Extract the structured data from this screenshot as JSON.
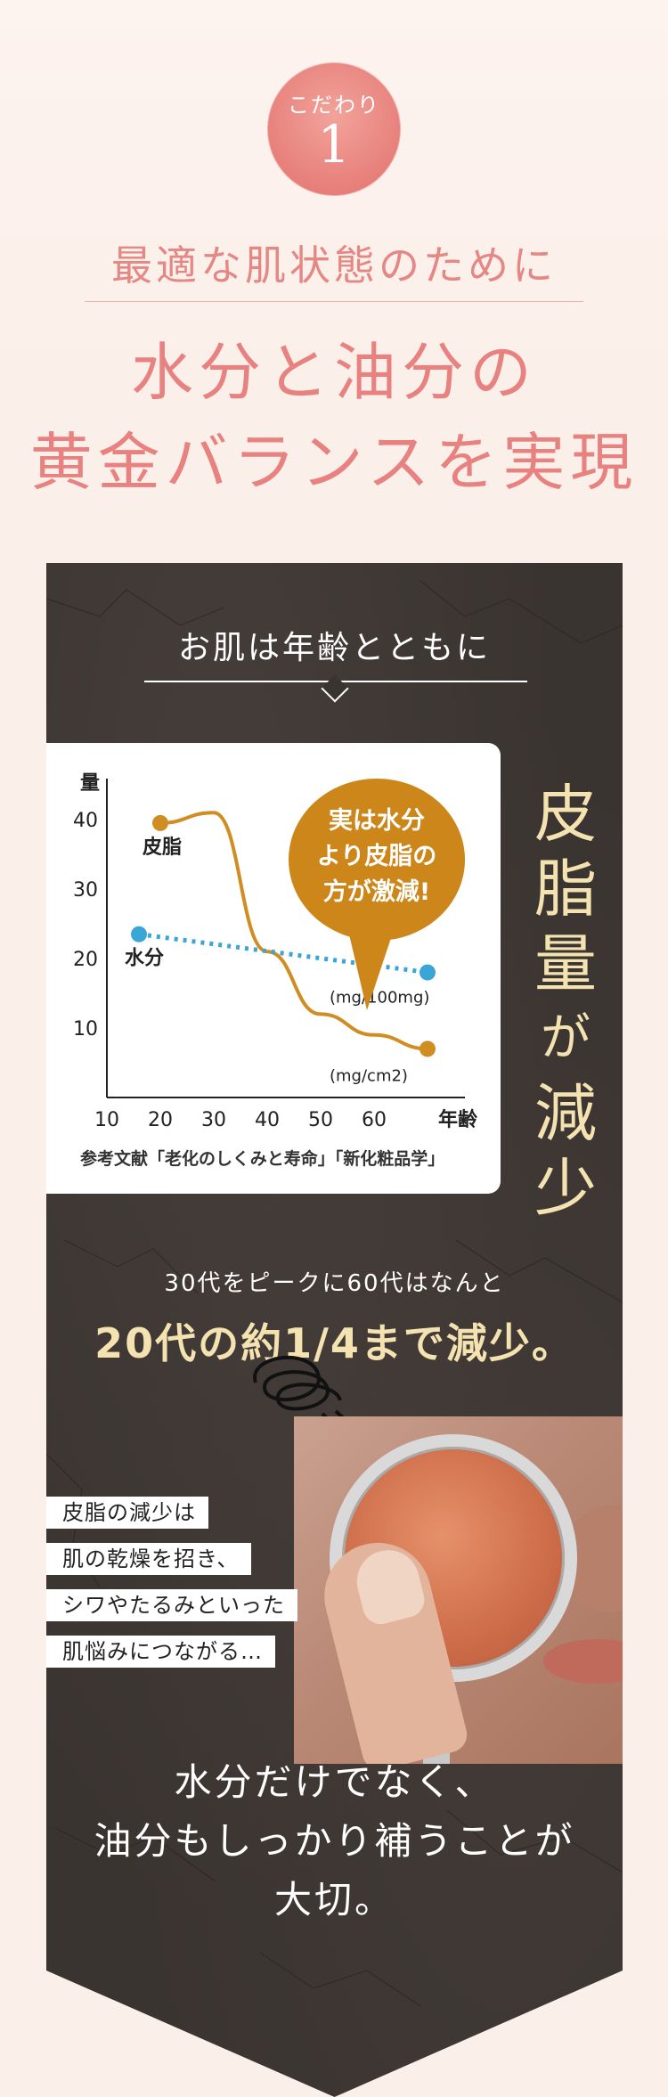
{
  "badge": {
    "label": "こだわり",
    "number": "1"
  },
  "subtitle": "最適な肌状態のために",
  "headline": {
    "line1": "水分と油分の",
    "line2": "黄金バランスを実現"
  },
  "panel": {
    "title": "お肌は年齢とともに",
    "vertical_title": [
      "皮",
      "脂",
      "量",
      "が",
      "減",
      "少"
    ],
    "reference": "参考文献「老化のしくみと寿命」「新化粧品学」",
    "peak_line1": "30代をピークに60代はなんと",
    "peak_line2": "20代の約1/4まで減少。",
    "tags": [
      "皮脂の減少は",
      "肌の乾燥を招き、",
      "シワやたるみといった",
      "肌悩みにつながる…"
    ],
    "closing": [
      "水分だけでなく、",
      "油分もしっかり補うことが",
      "大切。"
    ]
  },
  "bubble": [
    "実は水分",
    "より皮脂の",
    "方が激減!"
  ],
  "colors": {
    "accent_pink": "#e88280",
    "badge": "#e77f7a",
    "panel_bg": "#3a3431",
    "gold_text": "#f4e2b0",
    "sebum_line": "#d08d22",
    "water_line": "#3aa6d8",
    "bubble": "#cc8619"
  },
  "chart_data": {
    "type": "line",
    "ylabel": "量",
    "xlabel": "年齢",
    "x_ticks": [
      10,
      20,
      30,
      40,
      50,
      60
    ],
    "y_ticks": [
      10,
      20,
      30,
      40
    ],
    "xlim": [
      10,
      70
    ],
    "ylim": [
      0,
      45
    ],
    "series": [
      {
        "name": "皮脂",
        "unit": "(mg/cm2)",
        "style": "solid",
        "x": [
          20,
          30,
          40,
          50,
          60,
          70
        ],
        "y": [
          39.5,
          41,
          21,
          12,
          9,
          7
        ]
      },
      {
        "name": "水分",
        "unit": "(mg/100mg)",
        "style": "dotted",
        "x": [
          16,
          70
        ],
        "y": [
          23.5,
          18
        ]
      }
    ]
  }
}
